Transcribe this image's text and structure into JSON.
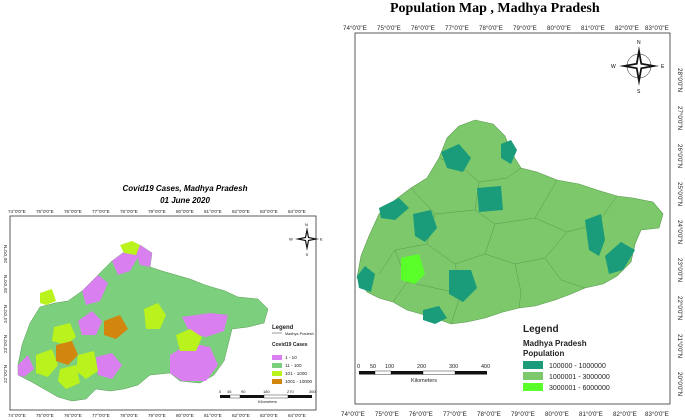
{
  "right_map": {
    "title": "Population Map , Madhya Pradesh",
    "top_lon": [
      "74°0'0\"E",
      "75°0'0\"E",
      "76°0'0\"E",
      "77°0'0\"E",
      "78°0'0\"E",
      "79°0'0\"E",
      "80°0'0\"E",
      "81°0'0\"E",
      "82°0'0\"E",
      "83°0'0\"E"
    ],
    "bottom_lon": [
      "74°0'0\"E",
      "75°0'0\"E",
      "76°0'0\"E",
      "77°0'0\"E",
      "78°0'0\"E",
      "79°0'0\"E",
      "80°0'0\"E",
      "81°0'0\"E",
      "82°0'0\"E",
      "83°0'0\"E"
    ],
    "lat": [
      "28°0'0\"N",
      "27°0'0\"N",
      "26°0'0\"N",
      "25°0'0\"N",
      "24°0'0\"N",
      "23°0'0\"N",
      "22°0'0\"N",
      "21°0'0\"N",
      "20°0'0\"N"
    ],
    "legend_title": "Legend",
    "legend_subtitle_1": "Madhya Pradesh",
    "legend_subtitle_2": "Population",
    "legend_items": [
      {
        "label": "100000 - 1000000",
        "color": "#1a9c7a"
      },
      {
        "label": "1000001 - 3000000",
        "color": "#7cc86a"
      },
      {
        "label": "3000001 - 6000000",
        "color": "#5aff2a"
      }
    ],
    "scale_ticks": [
      "0",
      "50",
      "100",
      "200",
      "300",
      "400"
    ],
    "scale_unit": "Kilometers",
    "compass": {
      "n": "N",
      "s": "S",
      "e": "E",
      "w": "W"
    }
  },
  "left_map": {
    "title": "Covid19 Cases, Madhya Pradesh",
    "date": "01 June 2020",
    "top_lon": [
      "74°0'0\"E",
      "75°0'0\"E",
      "76°0'0\"E",
      "77°0'0\"E",
      "78°0'0\"E",
      "79°0'0\"E",
      "80°0'0\"E",
      "81°0'0\"E",
      "82°0'0\"E",
      "83°0'0\"E",
      "84°0'0\"E"
    ],
    "bottom_lon": [
      "74°0'0\"E",
      "75°0'0\"E",
      "76°0'0\"E",
      "77°0'0\"E",
      "78°0'0\"E",
      "79°0'0\"E",
      "80°0'0\"E",
      "81°0'0\"E",
      "82°0'0\"E",
      "83°0'0\"E",
      "84°0'0\"E"
    ],
    "lat": [
      "26°0'0\"N",
      "25°0'0\"N",
      "24°0'0\"N",
      "23°0'0\"N",
      "22°0'0\"N"
    ],
    "legend_title": "Legend",
    "legend_boundary": "Madhya Pradesh",
    "legend_subtitle": "Covid19 Cases",
    "legend_items": [
      {
        "label": "1 - 10",
        "color": "#d97ff0"
      },
      {
        "label": "11 - 100",
        "color": "#7ccf7c"
      },
      {
        "label": "101 - 1000",
        "color": "#b9f21d"
      },
      {
        "label": "1001 - 10000",
        "color": "#d2860e"
      }
    ],
    "scale_ticks": [
      "0",
      "45",
      "90",
      "180",
      "270",
      "360"
    ],
    "scale_unit": "Kilometers",
    "compass": {
      "n": "N",
      "s": "S",
      "e": "E",
      "w": "W"
    }
  }
}
